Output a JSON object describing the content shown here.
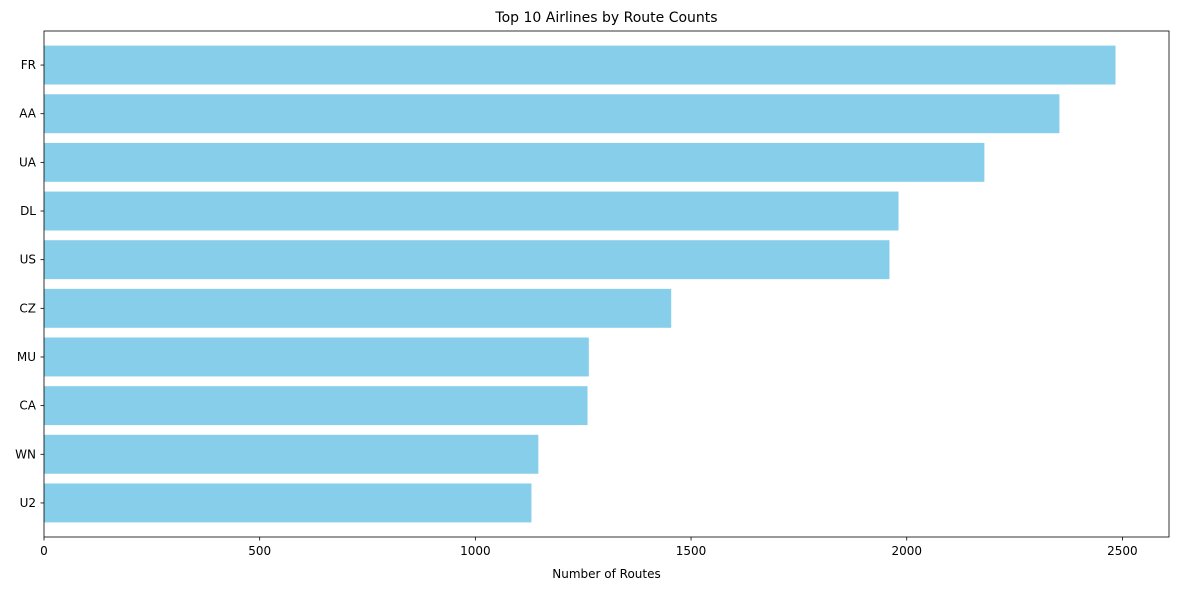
{
  "chart_data": {
    "type": "bar",
    "orientation": "horizontal",
    "title": "Top 10 Airlines by Route Counts",
    "xlabel": "Number of Routes",
    "ylabel": "",
    "categories": [
      "FR",
      "AA",
      "UA",
      "DL",
      "US",
      "CZ",
      "MU",
      "CA",
      "WN",
      "U2"
    ],
    "values": [
      2484,
      2354,
      2180,
      1981,
      1960,
      1454,
      1263,
      1260,
      1146,
      1130
    ],
    "xlim": [
      0,
      2608
    ],
    "xticks": [
      0,
      500,
      1000,
      1500,
      2000,
      2500
    ],
    "bar_color": "#87CEEB",
    "grid": false,
    "legend": "none"
  }
}
